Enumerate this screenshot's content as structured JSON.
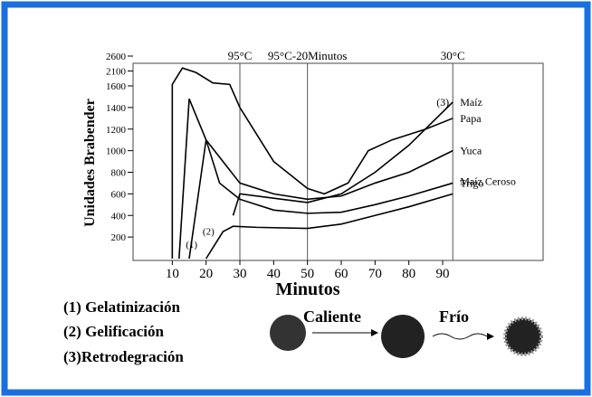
{
  "chart_data": {
    "type": "line",
    "x_label": "Minutos",
    "y_label": "Unidades Brabender",
    "xlim": [
      0,
      120
    ],
    "xticks": [
      10,
      20,
      30,
      40,
      50,
      60,
      70,
      80,
      90
    ],
    "ylim": [
      0,
      2600
    ],
    "y_break": 1600,
    "yticks": [
      200,
      400,
      600,
      800,
      1000,
      1200,
      1400,
      1600,
      2100,
      2600
    ],
    "vlines": [
      {
        "x": 30,
        "label": "95°C"
      },
      {
        "x": 50,
        "label": "95°C-20Minutos"
      },
      {
        "x": 93,
        "label": "30°C"
      }
    ],
    "series": [
      {
        "name": "Maíz",
        "color": "#000000",
        "x": [
          28,
          30,
          40,
          50,
          60,
          70,
          80,
          93
        ],
        "values": [
          400,
          600,
          560,
          520,
          600,
          800,
          1050,
          1450
        ]
      },
      {
        "name": "Papa",
        "color": "#000000",
        "x": [
          10,
          10,
          13,
          17,
          22,
          27,
          30,
          40,
          50,
          55,
          62,
          68,
          75,
          85,
          93
        ],
        "values": [
          0,
          1650,
          2200,
          2050,
          1700,
          1650,
          1400,
          900,
          650,
          600,
          700,
          1000,
          1100,
          1200,
          1300
        ]
      },
      {
        "name": "Yuca",
        "color": "#000000",
        "x": [
          12,
          15,
          20,
          30,
          40,
          50,
          60,
          70,
          80,
          93
        ],
        "values": [
          0,
          1480,
          1100,
          700,
          600,
          550,
          580,
          700,
          800,
          1000
        ]
      },
      {
        "name": "Trigo",
        "color": "#000000",
        "x": [
          15,
          20,
          24,
          30,
          40,
          50,
          60,
          70,
          80,
          93
        ],
        "values": [
          0,
          1100,
          700,
          550,
          450,
          420,
          430,
          500,
          580,
          700
        ]
      },
      {
        "name": "Maíz Ceroso",
        "color": "#000000",
        "x": [
          20,
          25,
          28,
          35,
          50,
          60,
          70,
          80,
          93
        ],
        "values": [
          0,
          250,
          300,
          290,
          280,
          320,
          400,
          480,
          600
        ]
      }
    ],
    "markers": [
      {
        "x": 14,
        "y": 100,
        "label": "(1)"
      },
      {
        "x": 19,
        "y": 220,
        "label": "(2)"
      }
    ],
    "curve_note": "(3)",
    "footnotes": [
      "(1) Gelatinización",
      "(2) Gelificación",
      "(3)Retrodegración"
    ],
    "arrow_labels": [
      "Caliente",
      "Frío"
    ]
  }
}
